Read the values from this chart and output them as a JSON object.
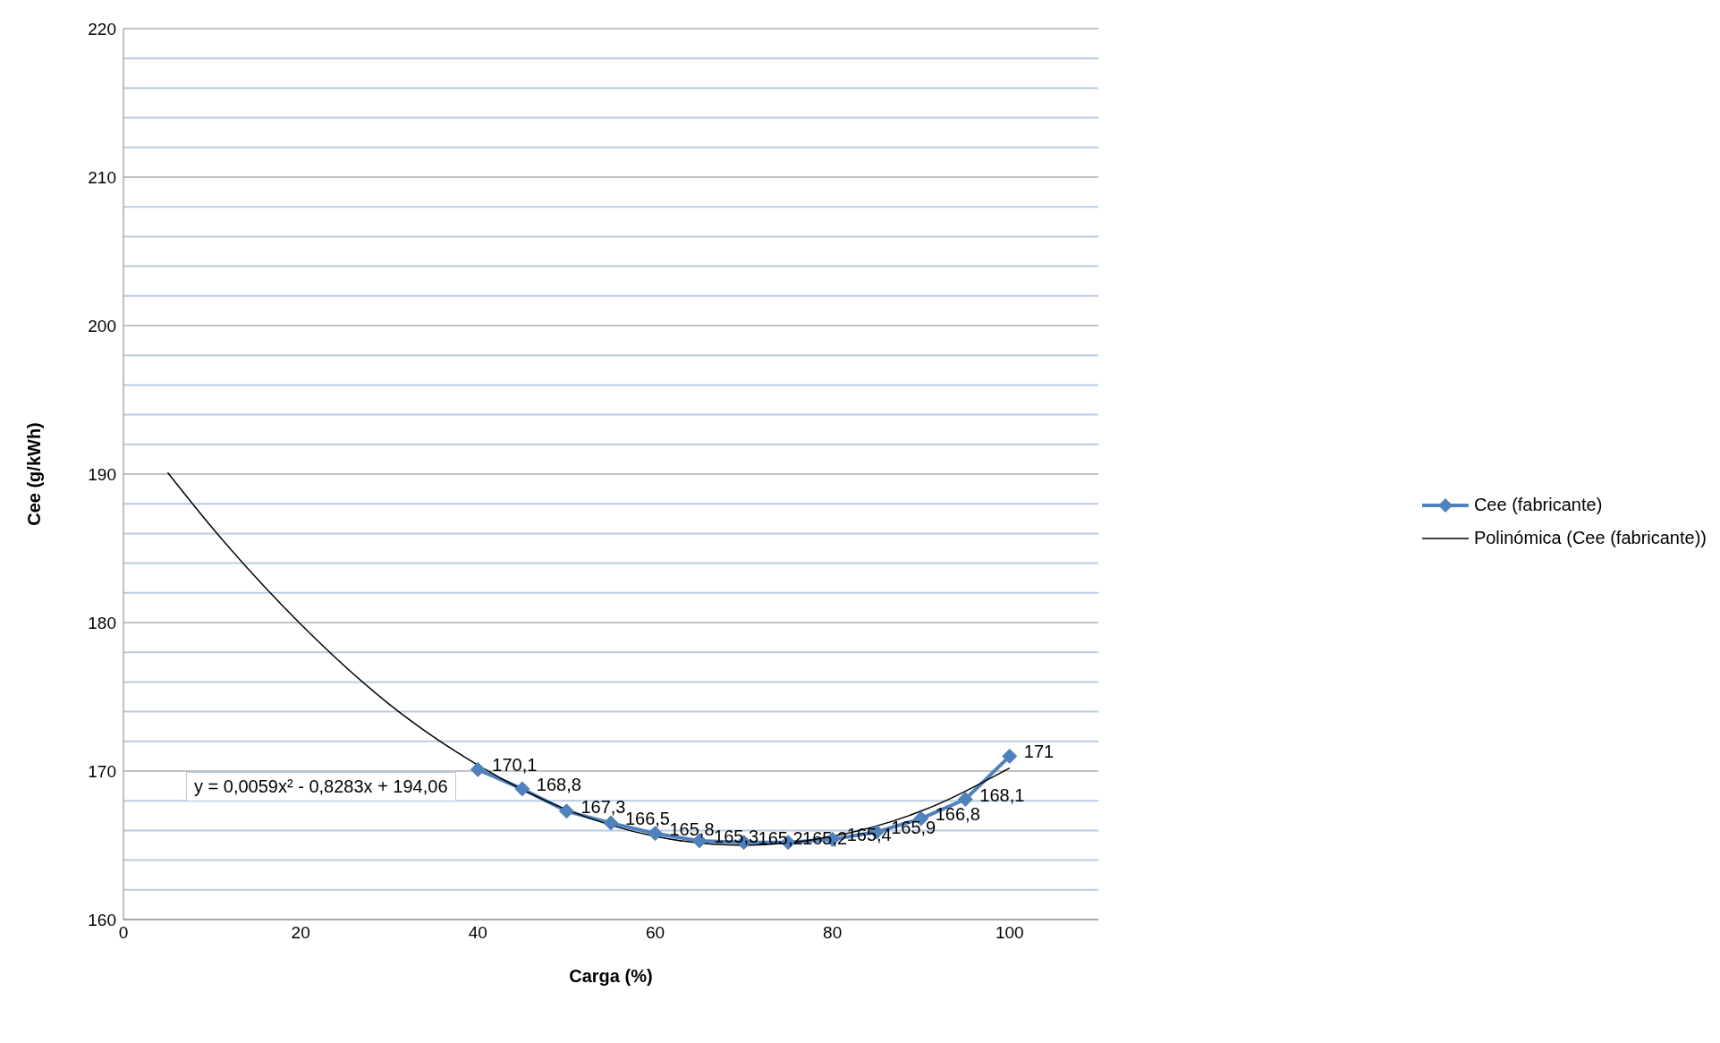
{
  "chart_data": {
    "type": "line",
    "xlabel": "Carga (%)",
    "ylabel": "Cee (g/kWh)",
    "xlim": [
      0,
      110
    ],
    "xticks": [
      0,
      20,
      40,
      60,
      80,
      100
    ],
    "ylim": [
      160,
      220
    ],
    "yticks": [
      160,
      {
        "value": 162,
        "label": null
      },
      {
        "value": 164,
        "label": null
      },
      {
        "value": 166,
        "label": null
      },
      {
        "value": 168,
        "label": null
      },
      170,
      {
        "value": 172,
        "label": null
      },
      {
        "value": 174,
        "label": null
      },
      {
        "value": 176,
        "label": null
      },
      {
        "value": 178,
        "label": null
      },
      180,
      {
        "value": 182,
        "label": null
      },
      {
        "value": 184,
        "label": null
      },
      {
        "value": 186,
        "label": null
      },
      {
        "value": 188,
        "label": null
      },
      190,
      {
        "value": 192,
        "label": null
      },
      {
        "value": 194,
        "label": null
      },
      {
        "value": 196,
        "label": null
      },
      {
        "value": 198,
        "label": null
      },
      200,
      {
        "value": 202,
        "label": null
      },
      {
        "value": 204,
        "label": null
      },
      {
        "value": 206,
        "label": null
      },
      {
        "value": 208,
        "label": null
      },
      210,
      {
        "value": 212,
        "label": null
      },
      {
        "value": 214,
        "label": null
      },
      {
        "value": 216,
        "label": null
      },
      {
        "value": 218,
        "label": null
      },
      220
    ],
    "grid": "y",
    "legend": "right",
    "annotations": [
      "y = 0,0059x² - 0,8283x + 194,06"
    ],
    "series": [
      {
        "name": "Cee (fabricante)",
        "color": "#4f81bd",
        "marker": "diamond",
        "x": [
          40,
          45,
          50,
          55,
          60,
          65,
          70,
          75,
          80,
          85,
          90,
          95,
          100
        ],
        "values": [
          170.1,
          168.8,
          167.3,
          166.5,
          165.8,
          165.3,
          165.2,
          165.2,
          165.4,
          165.9,
          166.8,
          168.1,
          171
        ],
        "value_labels": [
          "170,1",
          "168,8",
          "167,3",
          "166,5",
          "165,8",
          "165,3",
          "165,2",
          "165,2",
          "165,4",
          "165,9",
          "166,8",
          "168,1",
          "171"
        ]
      },
      {
        "name": "Polinómica (Cee (fabricante))",
        "color": "#000000",
        "marker": "none",
        "x": [
          5,
          10,
          20,
          30,
          40,
          50,
          60,
          70,
          80,
          90,
          100
        ],
        "values": [
          190.1,
          186.4,
          179.9,
          174.5,
          170.4,
          167.4,
          165.6,
          165.0,
          165.6,
          167.3,
          170.2
        ]
      }
    ]
  }
}
